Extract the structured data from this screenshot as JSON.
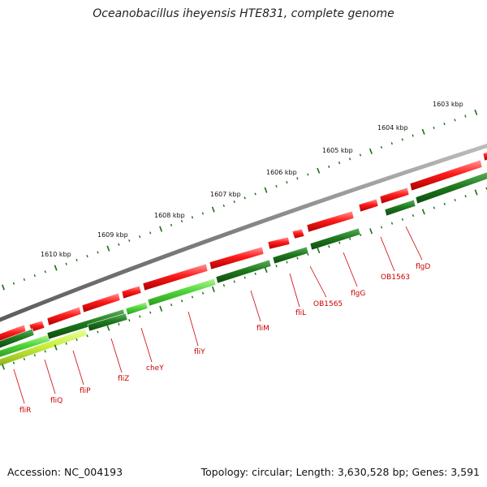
{
  "title": "Oceanobacillus iheyensis HTE831, complete genome",
  "footer": {
    "accession": "Accession: NC_004193",
    "summary": "Topology: circular; Length: 3,630,528 bp; Genes: 3,591"
  },
  "colors": {
    "backbone": "#808080",
    "forward_genes": "#ff1a1a",
    "reverse_genes_dark": "#1f7a1f",
    "reverse_genes_bright": "#66e03a",
    "reverse_genes_lime": "#c8f03c",
    "ticks": "#1a6e1a",
    "labels": "#cc0000"
  },
  "kbp_ticks": [
    "1603 kbp",
    "1604 kbp",
    "1605 kbp",
    "1606 kbp",
    "1607 kbp",
    "1608 kbp",
    "1609 kbp",
    "1610 kbp"
  ],
  "genes": [
    "fliR",
    "fliQ",
    "fliP",
    "fliZ",
    "cheY",
    "fliY",
    "fliM",
    "fliL",
    "OB1565",
    "flgG",
    "OB1563",
    "flgD"
  ]
}
